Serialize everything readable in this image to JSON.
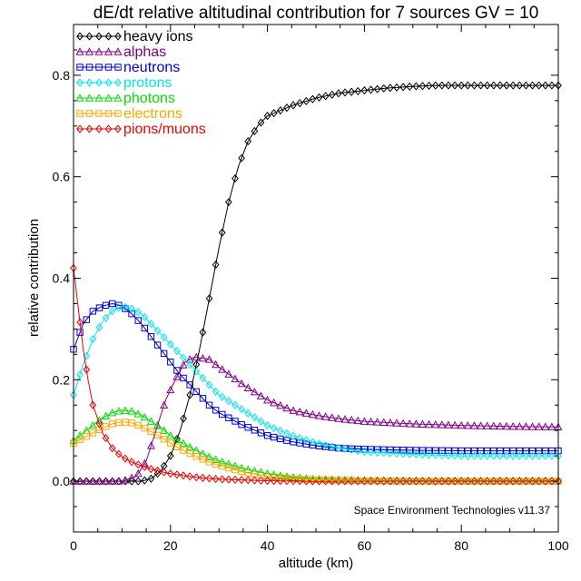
{
  "chart_data": {
    "type": "line",
    "title": "dE/dt relative altitudinal contribution for 7 sources GV = 10",
    "xlabel": "altitude (km)",
    "ylabel": "relative contribution",
    "xlim": [
      0,
      100
    ],
    "ylim": [
      -0.1,
      0.9
    ],
    "xticks": [
      0,
      20,
      40,
      60,
      80,
      100
    ],
    "yticks": [
      0.0,
      0.2,
      0.4,
      0.6,
      0.8
    ],
    "xtick_labels": [
      "0",
      "20",
      "40",
      "60",
      "80",
      "100"
    ],
    "ytick_labels": [
      "0.0",
      "0.2",
      "0.4",
      "0.6",
      "0.8"
    ],
    "grid": false,
    "legend_position": "top-left",
    "credit": "Space Environment Technologies v11.37",
    "series": [
      {
        "name": "heavy ions",
        "color": "#000000",
        "marker": "diamond",
        "x": [
          0,
          5,
          10,
          14,
          16,
          18,
          20,
          22,
          24,
          26,
          28,
          30,
          32,
          34,
          36,
          38,
          40,
          45,
          50,
          55,
          60,
          65,
          70,
          75,
          80,
          85,
          90,
          95,
          100
        ],
        "y": [
          0.0,
          0.0,
          0.0,
          0.0,
          0.005,
          0.02,
          0.05,
          0.1,
          0.17,
          0.26,
          0.36,
          0.46,
          0.55,
          0.62,
          0.67,
          0.7,
          0.72,
          0.74,
          0.755,
          0.765,
          0.77,
          0.775,
          0.778,
          0.78,
          0.78,
          0.78,
          0.78,
          0.78,
          0.78
        ]
      },
      {
        "name": "alphas",
        "color": "#800080",
        "marker": "triangle",
        "x": [
          0,
          5,
          10,
          13,
          15,
          17,
          19,
          21,
          23,
          25,
          28,
          30,
          35,
          40,
          45,
          50,
          55,
          60,
          70,
          80,
          90,
          100
        ],
        "y": [
          0.0,
          0.0,
          0.0,
          0.01,
          0.04,
          0.1,
          0.16,
          0.2,
          0.235,
          0.245,
          0.24,
          0.225,
          0.19,
          0.16,
          0.14,
          0.13,
          0.123,
          0.118,
          0.113,
          0.11,
          0.108,
          0.107
        ]
      },
      {
        "name": "neutrons",
        "color": "#0000cd",
        "marker": "square",
        "x": [
          0,
          2,
          4,
          6,
          8,
          10,
          12,
          14,
          16,
          18,
          20,
          22,
          25,
          28,
          30,
          35,
          40,
          45,
          50,
          55,
          60,
          70,
          80,
          90,
          100
        ],
        "y": [
          0.26,
          0.31,
          0.335,
          0.345,
          0.35,
          0.345,
          0.33,
          0.31,
          0.285,
          0.26,
          0.235,
          0.21,
          0.18,
          0.15,
          0.135,
          0.11,
          0.09,
          0.078,
          0.07,
          0.065,
          0.063,
          0.061,
          0.06,
          0.06,
          0.06
        ]
      },
      {
        "name": "protons",
        "color": "#00e5ee",
        "marker": "diamond",
        "x": [
          0,
          2,
          4,
          6,
          8,
          10,
          12,
          14,
          16,
          18,
          20,
          22,
          25,
          28,
          30,
          35,
          40,
          45,
          50,
          55,
          60,
          70,
          80,
          90,
          100
        ],
        "y": [
          0.17,
          0.23,
          0.28,
          0.315,
          0.335,
          0.345,
          0.34,
          0.33,
          0.31,
          0.29,
          0.27,
          0.25,
          0.22,
          0.19,
          0.17,
          0.14,
          0.11,
          0.09,
          0.075,
          0.065,
          0.058,
          0.053,
          0.05,
          0.05,
          0.05
        ]
      },
      {
        "name": "photons",
        "color": "#00dd00",
        "marker": "triangle",
        "x": [
          0,
          2,
          4,
          6,
          8,
          10,
          12,
          14,
          16,
          18,
          20,
          22,
          25,
          28,
          30,
          35,
          40,
          45,
          50,
          60,
          70,
          80,
          90,
          100
        ],
        "y": [
          0.08,
          0.095,
          0.11,
          0.125,
          0.135,
          0.14,
          0.138,
          0.13,
          0.118,
          0.105,
          0.09,
          0.078,
          0.062,
          0.048,
          0.04,
          0.025,
          0.015,
          0.008,
          0.004,
          0.002,
          0.001,
          0.001,
          0.001,
          0.001
        ]
      },
      {
        "name": "electrons",
        "color": "#ffa500",
        "marker": "square",
        "x": [
          0,
          2,
          4,
          6,
          8,
          10,
          12,
          14,
          16,
          18,
          20,
          22,
          25,
          28,
          30,
          35,
          40,
          45,
          50,
          60,
          70,
          80,
          90,
          100
        ],
        "y": [
          0.075,
          0.085,
          0.095,
          0.105,
          0.113,
          0.117,
          0.115,
          0.108,
          0.098,
          0.087,
          0.075,
          0.064,
          0.05,
          0.038,
          0.031,
          0.018,
          0.01,
          0.005,
          0.003,
          0.001,
          0.0,
          0.0,
          0.0,
          0.0
        ]
      },
      {
        "name": "pions/muons",
        "color": "#ee0000",
        "marker": "diamond",
        "x": [
          0,
          1,
          2,
          3,
          4,
          6,
          8,
          10,
          12,
          14,
          16,
          18,
          20,
          25,
          30,
          40,
          50,
          60,
          80,
          100
        ],
        "y": [
          0.42,
          0.34,
          0.26,
          0.2,
          0.15,
          0.095,
          0.065,
          0.048,
          0.038,
          0.03,
          0.024,
          0.019,
          0.015,
          0.008,
          0.004,
          0.001,
          0.0,
          0.0,
          0.0,
          0.0
        ]
      }
    ]
  }
}
